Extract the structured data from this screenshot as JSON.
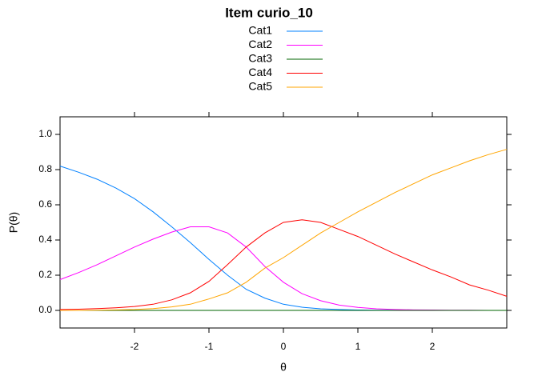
{
  "chart_data": {
    "type": "line",
    "title": "Item curio_10",
    "xlabel": "θ",
    "ylabel": "P(θ)",
    "x": [
      -3,
      -2.75,
      -2.5,
      -2.25,
      -2,
      -1.75,
      -1.5,
      -1.25,
      -1,
      -0.75,
      -0.5,
      -0.25,
      0,
      0.25,
      0.5,
      0.75,
      1,
      1.25,
      1.5,
      1.75,
      2,
      2.25,
      2.5,
      2.75,
      3
    ],
    "series": [
      {
        "name": "Cat1",
        "color": "#0080ff",
        "values": [
          0.82,
          0.785,
          0.745,
          0.695,
          0.635,
          0.56,
          0.475,
          0.385,
          0.29,
          0.2,
          0.12,
          0.07,
          0.035,
          0.018,
          0.009,
          0.005,
          0.002,
          0.001,
          0.001,
          0,
          0,
          0,
          0,
          0,
          0
        ]
      },
      {
        "name": "Cat2",
        "color": "#ff00ff",
        "values": [
          0.175,
          0.215,
          0.26,
          0.31,
          0.36,
          0.405,
          0.445,
          0.475,
          0.475,
          0.44,
          0.36,
          0.25,
          0.16,
          0.095,
          0.055,
          0.03,
          0.017,
          0.009,
          0.005,
          0.003,
          0.002,
          0.001,
          0.001,
          0,
          0
        ]
      },
      {
        "name": "Cat3",
        "color": "#006400",
        "values": [
          0,
          0,
          0,
          0,
          0,
          0,
          0,
          0,
          0,
          0,
          0,
          0,
          0,
          0,
          0,
          0,
          0,
          0,
          0,
          0,
          0,
          0,
          0,
          0,
          0
        ]
      },
      {
        "name": "Cat4",
        "color": "#ff0000",
        "values": [
          0.005,
          0.007,
          0.01,
          0.015,
          0.022,
          0.035,
          0.06,
          0.1,
          0.165,
          0.26,
          0.36,
          0.44,
          0.5,
          0.515,
          0.5,
          0.46,
          0.42,
          0.37,
          0.32,
          0.275,
          0.23,
          0.19,
          0.145,
          0.115,
          0.08
        ]
      },
      {
        "name": "Cat5",
        "color": "#ffa500",
        "values": [
          0,
          0,
          0.001,
          0.003,
          0.005,
          0.01,
          0.02,
          0.035,
          0.065,
          0.1,
          0.16,
          0.24,
          0.3,
          0.37,
          0.44,
          0.5,
          0.56,
          0.615,
          0.67,
          0.72,
          0.77,
          0.81,
          0.85,
          0.885,
          0.915
        ]
      }
    ],
    "xlim": [
      -3,
      3
    ],
    "xticks": [
      -2,
      -1,
      0,
      1,
      2
    ],
    "ylim": [
      -0.1,
      1.1
    ],
    "yticks": [
      {
        "value": 0,
        "label": "0.0"
      },
      0.2,
      0.4,
      0.6,
      0.8,
      {
        "value": 1,
        "label": "1.0"
      }
    ]
  }
}
